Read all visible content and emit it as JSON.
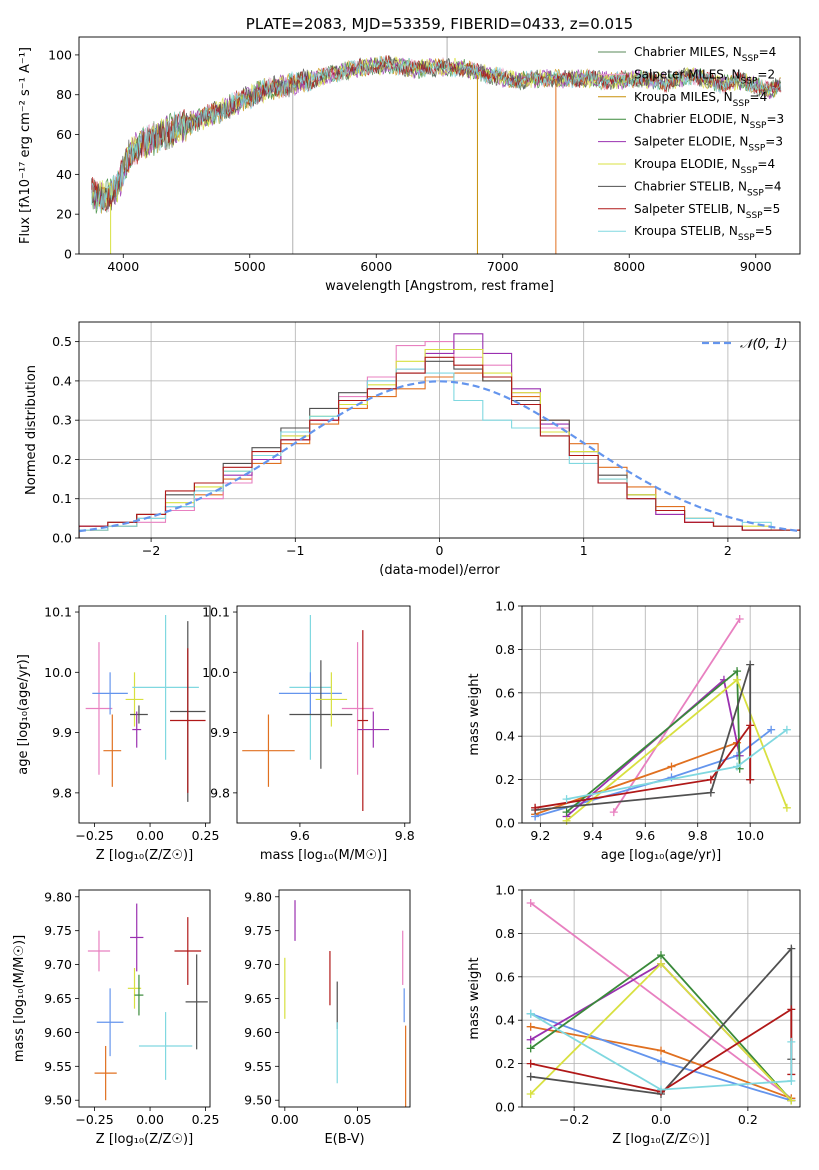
{
  "chart_data": [
    {
      "type": "line",
      "panel": "spectrum",
      "title": "PLATE=2083, MJD=53359, FIBERID=0433, z=0.015",
      "xlabel": "wavelength [Angstrom, rest frame]",
      "ylabel": "Flux [fλ10⁻¹⁷ erg cm⁻² s⁻¹ A⁻¹]",
      "xlim": [
        3650,
        9350
      ],
      "ylim": [
        0,
        109
      ],
      "xticks": [
        "4000",
        "5000",
        "6000",
        "7000",
        "8000",
        "9000"
      ],
      "yticks": [
        "0",
        "20",
        "40",
        "60",
        "80",
        "100"
      ],
      "grid": false,
      "legend_position": "top-right",
      "spectrum_envelope": {
        "x": [
          3750,
          3850,
          3950,
          4050,
          4150,
          4300,
          4500,
          4700,
          4900,
          5100,
          5300,
          5500,
          5700,
          5900,
          6100,
          6300,
          6500,
          6700,
          6900,
          7100,
          7300,
          7500,
          7700,
          7900,
          8100,
          8300,
          8500,
          8700,
          8900,
          9100,
          9200
        ],
        "y": [
          30,
          28,
          33,
          50,
          55,
          60,
          65,
          70,
          76,
          82,
          85,
          88,
          91,
          94,
          95,
          93,
          94,
          93,
          90,
          87,
          88,
          88,
          88,
          87,
          88,
          86,
          90,
          85,
          87,
          82,
          85
        ]
      },
      "series": [
        {
          "name": "Chabrier MILES, N<sub>SSP</sub>=4",
          "color": "#5a8a5a"
        },
        {
          "name": "Salpeter MILES, N<sub>SSP</sub>=2",
          "color": "#e8a0c8"
        },
        {
          "name": "Kroupa MILES, N<sub>SSP</sub>=4",
          "color": "#c8900a"
        },
        {
          "name": "Chabrier ELODIE, N<sub>SSP</sub>=3",
          "color": "#3a8a3a"
        },
        {
          "name": "Salpeter ELODIE, N<sub>SSP</sub>=3",
          "color": "#9a30b0"
        },
        {
          "name": "Kroupa ELODIE, N<sub>SSP</sub>=4",
          "color": "#d8e040"
        },
        {
          "name": "Chabrier STELIB, N<sub>SSP</sub>=4",
          "color": "#505050"
        },
        {
          "name": "Salpeter STELIB, N<sub>SSP</sub>=5",
          "color": "#b01818"
        },
        {
          "name": "Kroupa STELIB, N<sub>SSP</sub>=5",
          "color": "#80d8e0"
        }
      ]
    },
    {
      "type": "histogram",
      "panel": "residuals",
      "xlabel": "(data-model)/error",
      "ylabel": "Normed distribution",
      "xlim": [
        -2.5,
        2.5
      ],
      "ylim": [
        0,
        0.55
      ],
      "xticks": [
        "−2",
        "−1",
        "0",
        "1",
        "2"
      ],
      "yticks": [
        "0.0",
        "0.1",
        "0.2",
        "0.3",
        "0.4",
        "0.5"
      ],
      "grid": true,
      "legend_position": "top-right",
      "legend": "𝒩(0, 1)",
      "bins": [
        -2.5,
        -2.3,
        -2.1,
        -1.9,
        -1.7,
        -1.5,
        -1.3,
        -1.1,
        -0.9,
        -0.7,
        -0.5,
        -0.3,
        -0.1,
        0.1,
        0.3,
        0.5,
        0.7,
        0.9,
        1.1,
        1.3,
        1.5,
        1.7,
        1.9,
        2.1,
        2.3,
        2.5
      ],
      "histograms": [
        {
          "color": "#e07020",
          "values": [
            0.02,
            0.03,
            0.06,
            0.08,
            0.11,
            0.15,
            0.19,
            0.24,
            0.29,
            0.33,
            0.36,
            0.38,
            0.41,
            0.42,
            0.4,
            0.36,
            0.3,
            0.24,
            0.18,
            0.13,
            0.08,
            0.05,
            0.03,
            0.02,
            0.02
          ]
        },
        {
          "color": "#e880c0",
          "values": [
            0.02,
            0.03,
            0.04,
            0.07,
            0.1,
            0.14,
            0.2,
            0.26,
            0.3,
            0.36,
            0.41,
            0.49,
            0.5,
            0.46,
            0.44,
            0.37,
            0.28,
            0.22,
            0.15,
            0.1,
            0.06,
            0.04,
            0.03,
            0.02,
            0.02
          ]
        },
        {
          "color": "#9a30b0",
          "values": [
            0.03,
            0.03,
            0.05,
            0.08,
            0.12,
            0.16,
            0.2,
            0.25,
            0.3,
            0.35,
            0.4,
            0.43,
            0.47,
            0.52,
            0.47,
            0.38,
            0.29,
            0.21,
            0.14,
            0.1,
            0.06,
            0.04,
            0.03,
            0.02,
            0.02
          ]
        },
        {
          "color": "#505050",
          "values": [
            0.02,
            0.04,
            0.06,
            0.11,
            0.14,
            0.19,
            0.23,
            0.28,
            0.33,
            0.37,
            0.38,
            0.42,
            0.45,
            0.43,
            0.4,
            0.35,
            0.3,
            0.22,
            0.16,
            0.11,
            0.07,
            0.05,
            0.03,
            0.02,
            0.02
          ]
        },
        {
          "color": "#d8e040",
          "values": [
            0.02,
            0.03,
            0.05,
            0.09,
            0.13,
            0.17,
            0.21,
            0.26,
            0.31,
            0.34,
            0.39,
            0.45,
            0.48,
            0.48,
            0.42,
            0.37,
            0.27,
            0.22,
            0.15,
            0.11,
            0.07,
            0.05,
            0.03,
            0.03,
            0.02
          ]
        },
        {
          "color": "#80d8e0",
          "values": [
            0.02,
            0.03,
            0.05,
            0.08,
            0.12,
            0.17,
            0.21,
            0.27,
            0.31,
            0.35,
            0.4,
            0.43,
            0.42,
            0.35,
            0.3,
            0.28,
            0.26,
            0.19,
            0.15,
            0.1,
            0.07,
            0.05,
            0.03,
            0.04,
            0.02
          ]
        },
        {
          "color": "#b01818",
          "values": [
            0.03,
            0.04,
            0.06,
            0.12,
            0.14,
            0.18,
            0.22,
            0.25,
            0.3,
            0.35,
            0.38,
            0.42,
            0.46,
            0.44,
            0.41,
            0.34,
            0.26,
            0.21,
            0.14,
            0.1,
            0.07,
            0.04,
            0.03,
            0.02,
            0.02
          ]
        }
      ],
      "normal_curve": {
        "mu": 0,
        "sigma": 1,
        "color": "#6495ed",
        "style": "dashed"
      }
    },
    {
      "type": "errorbar",
      "panel": "age-vs-Z",
      "xlabel": "Z [log₁₀(Z/Z☉)]",
      "ylabel": "age  [log₁₀(age/yr)]",
      "xlim": [
        -0.32,
        0.27
      ],
      "ylim": [
        9.75,
        10.11
      ],
      "xticks": [
        "−0.25",
        "0.00",
        "0.25"
      ],
      "yticks": [
        "9.8",
        "9.9",
        "10.0",
        "10.1"
      ],
      "grid": false,
      "points": [
        {
          "x": -0.23,
          "xerr": 0.06,
          "y": 9.94,
          "yerr": 0.11,
          "color": "#e880c0"
        },
        {
          "x": -0.18,
          "xerr": 0.08,
          "y": 9.965,
          "yerr": 0.035,
          "color": "#6495ed"
        },
        {
          "x": -0.17,
          "xerr": 0.04,
          "y": 9.87,
          "yerr": 0.06,
          "color": "#e07020"
        },
        {
          "x": -0.07,
          "xerr": 0.04,
          "y": 9.955,
          "yerr": 0.045,
          "color": "#d8e040"
        },
        {
          "x": -0.05,
          "xerr": 0.04,
          "y": 9.93,
          "yerr": 0.015,
          "color": "#505050"
        },
        {
          "x": -0.06,
          "xerr": 0.02,
          "y": 9.905,
          "yerr": 0.03,
          "color": "#9a30b0"
        },
        {
          "x": 0.07,
          "xerr": 0.15,
          "y": 9.975,
          "yerr": 0.12,
          "color": "#80d8e0"
        },
        {
          "x": 0.17,
          "xerr": 0.08,
          "y": 9.935,
          "yerr": 0.15,
          "color": "#505050"
        },
        {
          "x": 0.17,
          "xerr": 0.08,
          "y": 9.92,
          "yerr": 0.12,
          "color": "#b01818"
        }
      ]
    },
    {
      "type": "errorbar",
      "panel": "age-vs-mass",
      "xlabel": "mass [log₁₀(M/M☉)]",
      "ylabel": "",
      "xlim": [
        9.48,
        9.81
      ],
      "ylim": [
        9.75,
        10.11
      ],
      "xticks": [
        "9.6",
        "9.8"
      ],
      "yticks": [
        "9.8",
        "9.9",
        "10.0",
        "10.1"
      ],
      "grid": false,
      "points": [
        {
          "x": 9.54,
          "xerr": 0.05,
          "y": 9.87,
          "yerr": 0.06,
          "color": "#e07020"
        },
        {
          "x": 9.62,
          "xerr": 0.04,
          "y": 9.975,
          "yerr": 0.12,
          "color": "#80d8e0"
        },
        {
          "x": 9.62,
          "xerr": 0.06,
          "y": 9.965,
          "yerr": 0.035,
          "color": "#6495ed"
        },
        {
          "x": 9.64,
          "xerr": 0.06,
          "y": 9.93,
          "yerr": 0.09,
          "color": "#505050"
        },
        {
          "x": 9.66,
          "xerr": 0.03,
          "y": 9.955,
          "yerr": 0.045,
          "color": "#d8e040"
        },
        {
          "x": 9.71,
          "xerr": 0.03,
          "y": 9.94,
          "yerr": 0.11,
          "color": "#e880c0"
        },
        {
          "x": 9.72,
          "xerr": 0.01,
          "y": 9.92,
          "yerr": 0.15,
          "color": "#b01818"
        },
        {
          "x": 9.74,
          "xerr": 0.03,
          "y": 9.905,
          "yerr": 0.03,
          "color": "#9a30b0"
        }
      ]
    },
    {
      "type": "line",
      "panel": "mass-weight-vs-age",
      "xlabel": "age  [log₁₀(age/yr)]",
      "ylabel": "mass weight",
      "xlim": [
        9.13,
        10.19
      ],
      "ylim": [
        0.0,
        1.0
      ],
      "xticks": [
        "9.2",
        "9.4",
        "9.6",
        "9.8",
        "10.0"
      ],
      "yticks": [
        "0.0",
        "0.2",
        "0.4",
        "0.6",
        "0.8",
        "1.0"
      ],
      "grid": true,
      "series": [
        {
          "color": "#e880c0",
          "x": [
            9.48,
            9.96
          ],
          "y": [
            0.05,
            0.94
          ]
        },
        {
          "color": "#e07020",
          "x": [
            9.18,
            9.7,
            9.95
          ],
          "y": [
            0.04,
            0.26,
            0.37
          ]
        },
        {
          "color": "#6495ed",
          "x": [
            9.18,
            9.7,
            9.95,
            10.08
          ],
          "y": [
            0.03,
            0.21,
            0.31,
            0.43
          ]
        },
        {
          "color": "#9a30b0",
          "x": [
            9.3,
            9.9,
            9.96
          ],
          "y": [
            0.03,
            0.66,
            0.31
          ]
        },
        {
          "color": "#3a8a3a",
          "x": [
            9.3,
            9.95,
            9.96
          ],
          "y": [
            0.05,
            0.7,
            0.25
          ]
        },
        {
          "color": "#d8e040",
          "x": [
            9.3,
            9.95,
            10.14
          ],
          "y": [
            0.01,
            0.66,
            0.07
          ]
        },
        {
          "color": "#505050",
          "x": [
            9.18,
            9.85,
            10.0,
            10.0
          ],
          "y": [
            0.06,
            0.14,
            0.73,
            0.2
          ]
        },
        {
          "color": "#b01818",
          "x": [
            9.18,
            9.85,
            10.0,
            10.0
          ],
          "y": [
            0.07,
            0.2,
            0.45,
            0.2
          ]
        },
        {
          "color": "#80d8e0",
          "x": [
            9.3,
            9.95,
            10.14
          ],
          "y": [
            0.11,
            0.26,
            0.43
          ]
        }
      ]
    },
    {
      "type": "errorbar",
      "panel": "mass-vs-Z",
      "xlabel": "Z [log₁₀(Z/Z☉)]",
      "ylabel": "mass [log₁₀(M/M☉)]",
      "xlim": [
        -0.32,
        0.27
      ],
      "ylim": [
        9.49,
        9.81
      ],
      "xticks": [
        "−0.25",
        "0.00",
        "0.25"
      ],
      "yticks": [
        "9.50",
        "9.55",
        "9.60",
        "9.65",
        "9.70",
        "9.75",
        "9.80"
      ],
      "grid": false,
      "points": [
        {
          "x": -0.23,
          "xerr": 0.05,
          "y": 9.72,
          "yerr": 0.03,
          "color": "#e880c0"
        },
        {
          "x": -0.18,
          "xerr": 0.06,
          "y": 9.615,
          "yerr": 0.05,
          "color": "#6495ed"
        },
        {
          "x": -0.2,
          "xerr": 0.05,
          "y": 9.54,
          "yerr": 0.04,
          "color": "#e07020"
        },
        {
          "x": -0.07,
          "xerr": 0.03,
          "y": 9.665,
          "yerr": 0.03,
          "color": "#d8e040"
        },
        {
          "x": -0.05,
          "xerr": 0.02,
          "y": 9.655,
          "yerr": 0.03,
          "color": "#3a8a3a"
        },
        {
          "x": -0.06,
          "xerr": 0.03,
          "y": 9.74,
          "yerr": 0.05,
          "color": "#9a30b0"
        },
        {
          "x": 0.07,
          "xerr": 0.12,
          "y": 9.58,
          "yerr": 0.05,
          "color": "#80d8e0"
        },
        {
          "x": 0.17,
          "xerr": 0.06,
          "y": 9.72,
          "yerr": 0.05,
          "color": "#b01818"
        },
        {
          "x": 0.21,
          "xerr": 0.05,
          "y": 9.645,
          "yerr": 0.07,
          "color": "#505050"
        }
      ]
    },
    {
      "type": "errorbar",
      "panel": "mass-vs-EBV",
      "xlabel": "E(B-V)",
      "ylabel": "",
      "xlim": [
        -0.004,
        0.086
      ],
      "ylim": [
        9.49,
        9.81
      ],
      "xticks": [
        "0.00",
        "0.05"
      ],
      "yticks": [
        "9.50",
        "9.55",
        "9.60",
        "9.65",
        "9.70",
        "9.75",
        "9.80"
      ],
      "grid": false,
      "points": [
        {
          "x": 0.0,
          "y": 9.665,
          "yerr": 0.045,
          "color": "#d8e040"
        },
        {
          "x": 0.007,
          "y": 9.765,
          "yerr": 0.03,
          "color": "#9a30b0"
        },
        {
          "x": 0.031,
          "y": 9.68,
          "yerr": 0.04,
          "color": "#b01818"
        },
        {
          "x": 0.036,
          "y": 9.64,
          "yerr": 0.035,
          "color": "#505050"
        },
        {
          "x": 0.036,
          "y": 9.57,
          "yerr": 0.045,
          "color": "#80d8e0"
        },
        {
          "x": 0.081,
          "y": 9.71,
          "yerr": 0.04,
          "color": "#e880c0"
        },
        {
          "x": 0.082,
          "y": 9.64,
          "yerr": 0.025,
          "color": "#6495ed"
        },
        {
          "x": 0.083,
          "y": 9.55,
          "yerr": 0.06,
          "color": "#e07020"
        }
      ]
    },
    {
      "type": "line",
      "panel": "mass-weight-vs-Z",
      "xlabel": "Z [log₁₀(Z/Z☉)]",
      "ylabel": "mass weight",
      "xlim": [
        -0.32,
        0.32
      ],
      "ylim": [
        0.0,
        1.0
      ],
      "xticks": [
        "−0.2",
        "0.0",
        "0.2"
      ],
      "yticks": [
        "0.0",
        "0.2",
        "0.4",
        "0.6",
        "0.8",
        "1.0"
      ],
      "grid": true,
      "series": [
        {
          "color": "#e880c0",
          "x": [
            -0.3,
            0.3
          ],
          "y": [
            0.94,
            0.04
          ]
        },
        {
          "color": "#e07020",
          "x": [
            -0.3,
            0.0,
            0.3
          ],
          "y": [
            0.37,
            0.26,
            0.04
          ]
        },
        {
          "color": "#6495ed",
          "x": [
            -0.3,
            0.0,
            0.3
          ],
          "y": [
            0.43,
            0.21,
            0.03
          ]
        },
        {
          "color": "#9a30b0",
          "x": [
            -0.3,
            0.0,
            0.3
          ],
          "y": [
            0.31,
            0.66,
            0.03
          ]
        },
        {
          "color": "#3a8a3a",
          "x": [
            -0.3,
            0.0,
            0.3
          ],
          "y": [
            0.27,
            0.7,
            0.03
          ]
        },
        {
          "color": "#d8e040",
          "x": [
            -0.3,
            0.0,
            0.3
          ],
          "y": [
            0.06,
            0.66,
            0.03
          ]
        },
        {
          "color": "#505050",
          "x": [
            -0.3,
            0.0,
            0.3,
            0.3
          ],
          "y": [
            0.14,
            0.06,
            0.73,
            0.22
          ]
        },
        {
          "color": "#b01818",
          "x": [
            -0.3,
            0.0,
            0.3,
            0.3
          ],
          "y": [
            0.2,
            0.07,
            0.45,
            0.15
          ]
        },
        {
          "color": "#80d8e0",
          "x": [
            -0.3,
            0.0,
            0.3,
            0.3
          ],
          "y": [
            0.43,
            0.08,
            0.12,
            0.3
          ]
        }
      ]
    }
  ]
}
